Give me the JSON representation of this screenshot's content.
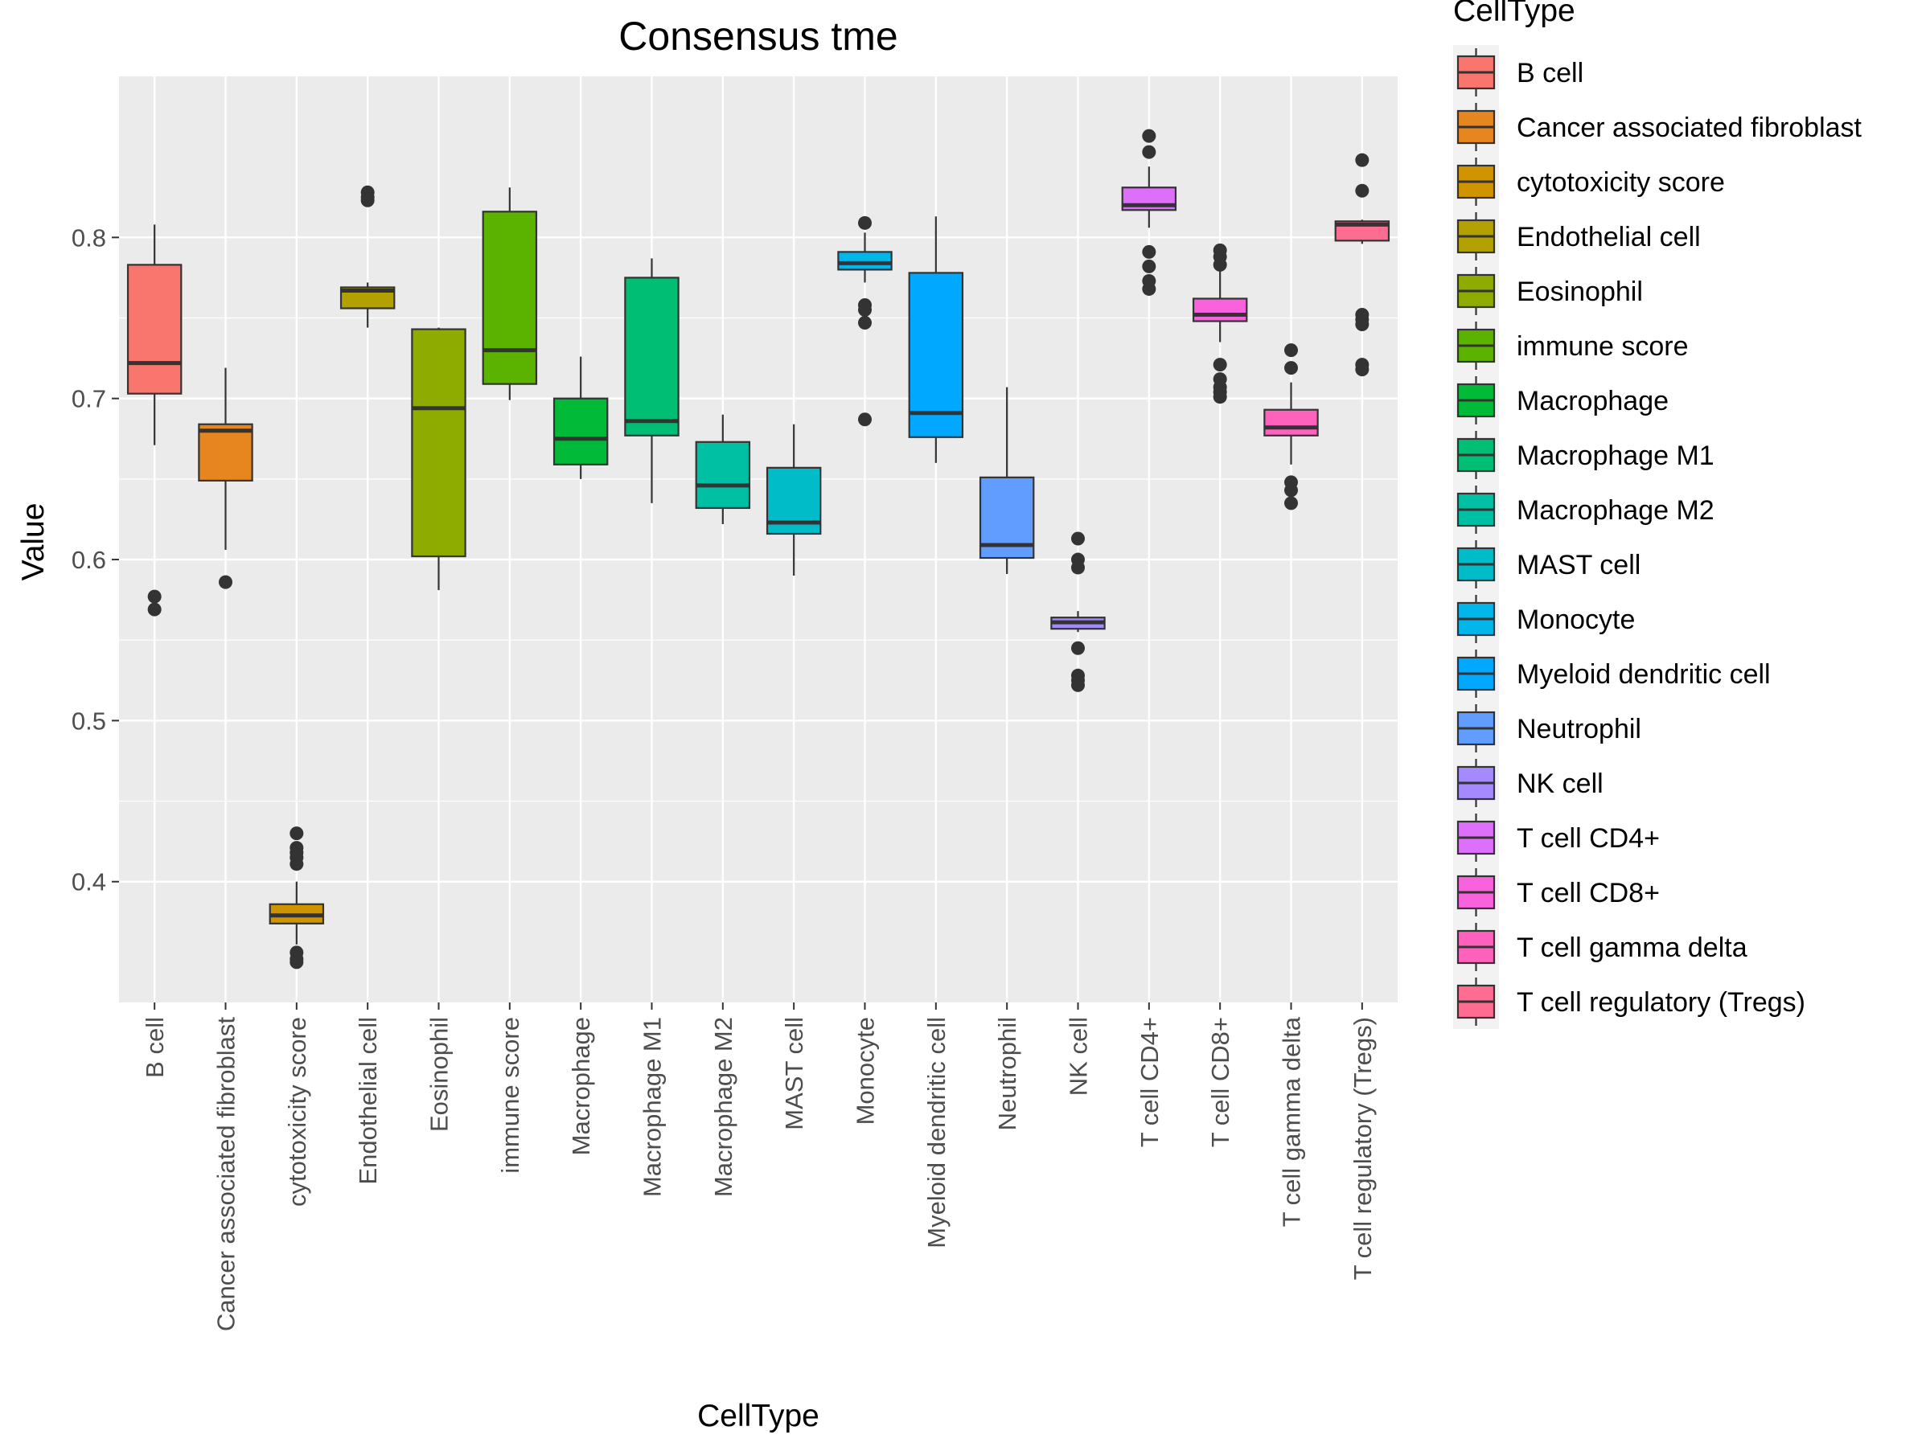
{
  "chart_data": {
    "type": "box",
    "title": "Consensus tme",
    "xlabel": "CellType",
    "ylabel": "Value",
    "ylim": [
      0.325,
      0.9
    ],
    "yticks": [
      0.4,
      0.5,
      0.6,
      0.7,
      0.8
    ],
    "ytick_labels": [
      "0.4",
      "0.5",
      "0.6",
      "0.7",
      "0.8"
    ],
    "grid": true,
    "legend": {
      "title": "CellType",
      "placement": "right"
    },
    "categories": [
      "B cell",
      "Cancer associated fibroblast",
      "cytotoxicity score",
      "Endothelial cell",
      "Eosinophil",
      "immune score",
      "Macrophage",
      "Macrophage M1",
      "Macrophage M2",
      "MAST cell",
      "Monocyte",
      "Myeloid dendritic cell",
      "Neutrophil",
      "NK cell",
      "T cell CD4+",
      "T cell CD8+",
      "T cell gamma delta",
      "T cell regulatory (Tregs)"
    ],
    "colors": [
      "#F8766D",
      "#E7851E",
      "#D09400",
      "#B2A100",
      "#8EAB00",
      "#5BB300",
      "#00BA38",
      "#00BF74",
      "#00C0A3",
      "#00BCC8",
      "#00B6EB",
      "#00A9FF",
      "#619CFF",
      "#A58AFF",
      "#DE6FFA",
      "#F962DD",
      "#FF62BC",
      "#FF6C91"
    ],
    "boxes": [
      {
        "whisker_low": 0.671,
        "q1": 0.703,
        "median": 0.722,
        "q3": 0.783,
        "whisker_high": 0.808,
        "outliers": [
          0.577,
          0.569
        ]
      },
      {
        "whisker_low": 0.606,
        "q1": 0.649,
        "median": 0.68,
        "q3": 0.684,
        "whisker_high": 0.719,
        "outliers": [
          0.586
        ]
      },
      {
        "whisker_low": 0.361,
        "q1": 0.374,
        "median": 0.379,
        "q3": 0.386,
        "whisker_high": 0.4,
        "outliers": [
          0.43,
          0.421,
          0.418,
          0.415,
          0.411,
          0.356,
          0.352,
          0.35
        ]
      },
      {
        "whisker_low": 0.744,
        "q1": 0.756,
        "median": 0.767,
        "q3": 0.769,
        "whisker_high": 0.772,
        "outliers": [
          0.828,
          0.825,
          0.823
        ]
      },
      {
        "whisker_low": 0.581,
        "q1": 0.602,
        "median": 0.694,
        "q3": 0.743,
        "whisker_high": 0.744,
        "outliers": []
      },
      {
        "whisker_low": 0.699,
        "q1": 0.709,
        "median": 0.73,
        "q3": 0.816,
        "whisker_high": 0.831,
        "outliers": []
      },
      {
        "whisker_low": 0.65,
        "q1": 0.659,
        "median": 0.675,
        "q3": 0.7,
        "whisker_high": 0.726,
        "outliers": []
      },
      {
        "whisker_low": 0.635,
        "q1": 0.677,
        "median": 0.686,
        "q3": 0.775,
        "whisker_high": 0.787,
        "outliers": []
      },
      {
        "whisker_low": 0.622,
        "q1": 0.632,
        "median": 0.646,
        "q3": 0.673,
        "whisker_high": 0.69,
        "outliers": []
      },
      {
        "whisker_low": 0.59,
        "q1": 0.616,
        "median": 0.623,
        "q3": 0.657,
        "whisker_high": 0.684,
        "outliers": []
      },
      {
        "whisker_low": 0.772,
        "q1": 0.78,
        "median": 0.784,
        "q3": 0.791,
        "whisker_high": 0.803,
        "outliers": [
          0.809,
          0.758,
          0.755,
          0.747,
          0.687
        ]
      },
      {
        "whisker_low": 0.66,
        "q1": 0.676,
        "median": 0.691,
        "q3": 0.778,
        "whisker_high": 0.813,
        "outliers": []
      },
      {
        "whisker_low": 0.591,
        "q1": 0.601,
        "median": 0.609,
        "q3": 0.651,
        "whisker_high": 0.707,
        "outliers": []
      },
      {
        "whisker_low": 0.555,
        "q1": 0.557,
        "median": 0.561,
        "q3": 0.564,
        "whisker_high": 0.568,
        "outliers": [
          0.613,
          0.6,
          0.595,
          0.545,
          0.528,
          0.525,
          0.522
        ]
      },
      {
        "whisker_low": 0.806,
        "q1": 0.817,
        "median": 0.82,
        "q3": 0.831,
        "whisker_high": 0.844,
        "outliers": [
          0.863,
          0.853,
          0.791,
          0.782,
          0.773,
          0.768
        ]
      },
      {
        "whisker_low": 0.735,
        "q1": 0.748,
        "median": 0.752,
        "q3": 0.762,
        "whisker_high": 0.779,
        "outliers": [
          0.792,
          0.788,
          0.783,
          0.721,
          0.712,
          0.707,
          0.704,
          0.701
        ]
      },
      {
        "whisker_low": 0.659,
        "q1": 0.677,
        "median": 0.682,
        "q3": 0.693,
        "whisker_high": 0.71,
        "outliers": [
          0.73,
          0.719,
          0.648,
          0.643,
          0.635
        ]
      },
      {
        "whisker_low": 0.796,
        "q1": 0.798,
        "median": 0.808,
        "q3": 0.81,
        "whisker_high": 0.811,
        "outliers": [
          0.848,
          0.829,
          0.752,
          0.749,
          0.746,
          0.721,
          0.718
        ]
      }
    ]
  }
}
